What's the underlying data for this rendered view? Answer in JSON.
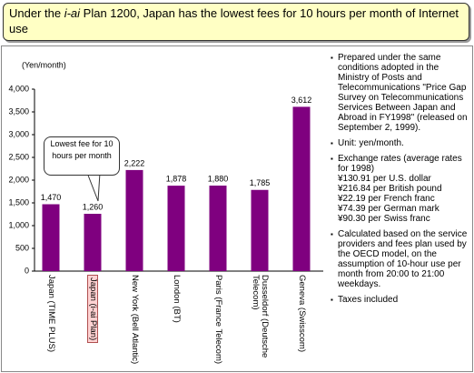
{
  "header": {
    "title": [
      "Under the ",
      "i-ai",
      " Plan 1200, Japan has the lowest fees for 10 hours per month of Internet use"
    ]
  },
  "chart_data": {
    "type": "bar",
    "y_axis_label": "(Yen/month)",
    "categories": [
      "Japan (TIME PLUS)",
      "Japan (i-ai Plan)",
      "New York (Bell Atlantic)",
      "London (BT)",
      "Paris (France Telecom)",
      "Dusseldorf (Deutsche Telecom)",
      "Geneva (Swisscom)"
    ],
    "values": [
      1470,
      1260,
      2222,
      1878,
      1880,
      1785,
      3612
    ],
    "value_labels": [
      "1,470",
      "1,260",
      "2,222",
      "1,878",
      "1,880",
      "1,785",
      "3,612"
    ],
    "color": "#7f007f",
    "highlighted_category": 1,
    "annotation": {
      "text": "Lowest fee for 10 hours per month",
      "category": 1
    },
    "ylim": [
      0,
      4000
    ],
    "yticks": [
      0,
      500,
      {
        "value": 1000,
        "label": "1,000"
      },
      {
        "value": 1500,
        "label": "1,500"
      },
      {
        "value": 2000,
        "label": "2,000"
      },
      {
        "value": 2500,
        "label": "2,500"
      },
      {
        "value": 3000,
        "label": "3,000"
      },
      {
        "value": 3500,
        "label": "3,500"
      },
      {
        "value": 4000,
        "label": "4,000"
      }
    ],
    "grid": false
  },
  "notes": [
    {
      "text": "Prepared under the same conditions adopted in the Ministry of Posts and Telecommunications \"Price Gap Survey on Telecommunications Services Between Japan and Abroad in FY1998\" (released on September 2, 1999)."
    },
    {
      "text": "Unit:  yen/month."
    },
    {
      "text": "Exchange rates (average rates for 1998)",
      "lines": [
        "¥130.91 per U.S. dollar",
        "¥216.84 per British pound",
        "¥22.19 per French franc",
        "¥74.39 per German mark",
        "¥90.30 per Swiss franc"
      ]
    },
    {
      "text": "Calculated based on the service providers and fees plan used by the OECD model, on the assumption of 10-hour use per month from 20:00 to 21:00 weekdays."
    },
    {
      "text": "Taxes included"
    }
  ]
}
